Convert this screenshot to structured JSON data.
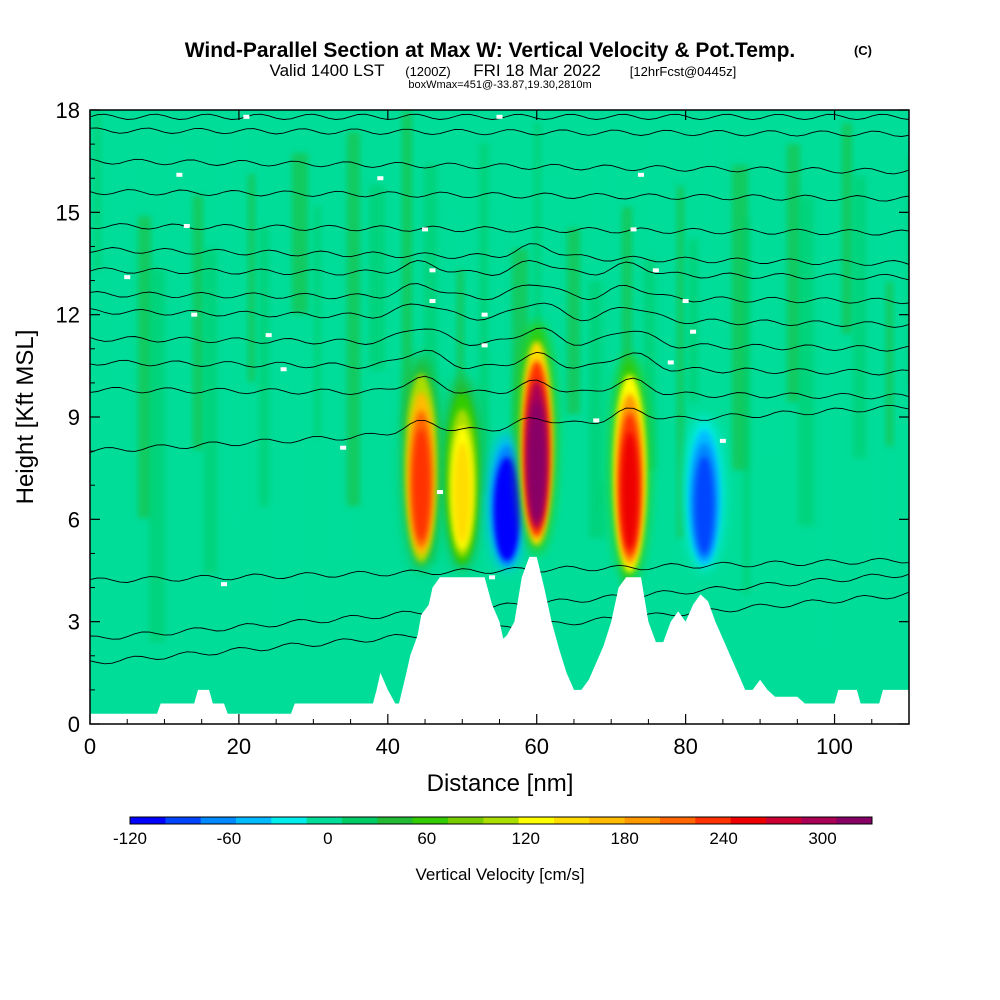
{
  "chart_data": {
    "type": "heatmap",
    "title": "Wind-Parallel Section at Max W: Vertical Velocity & Pot.Temp.",
    "title_mark": "(C)",
    "subtitle_a": "Valid 1400 LST",
    "subtitle_b": "(1200Z)",
    "subtitle_c": "FRI 18 Mar 2022",
    "subtitle_d": "[12hrFcst@0445z]",
    "subtitle2": "boxWmax=451@-33.87,19.30,2810m",
    "xlabel": "Distance [nm]",
    "ylabel": "Height [Kft MSL]",
    "xlim": [
      0,
      110
    ],
    "ylim": [
      0,
      18
    ],
    "xticks": [
      0,
      20,
      40,
      60,
      80,
      100
    ],
    "yticks": [
      0,
      3,
      6,
      9,
      12,
      15,
      18
    ],
    "colorbar": {
      "label": "Vertical Velocity [cm/s]",
      "range": [
        -120,
        330
      ],
      "ticks": [
        -120,
        -60,
        0,
        60,
        120,
        180,
        240,
        300
      ],
      "colors": [
        "#0000ff",
        "#0044ff",
        "#0088ff",
        "#00bbff",
        "#00eeee",
        "#00dd99",
        "#00cc66",
        "#22bb33",
        "#33cc00",
        "#77cc00",
        "#aadd00",
        "#ffff00",
        "#ffdd00",
        "#ffbb00",
        "#ff9900",
        "#ff6600",
        "#ff3300",
        "#ee0000",
        "#cc0033",
        "#aa0055",
        "#880066"
      ]
    },
    "velocity_cores": [
      {
        "x": 44.5,
        "y_bottom": 4.5,
        "y_top": 10.8,
        "w": 240
      },
      {
        "x": 50.0,
        "y_bottom": 4.5,
        "y_top": 10.2,
        "w": 150
      },
      {
        "x": 56.0,
        "y_bottom": 4.5,
        "y_top": 8.5,
        "w": -120
      },
      {
        "x": 60.0,
        "y_bottom": 5.0,
        "y_top": 11.8,
        "w": 330
      },
      {
        "x": 72.5,
        "y_bottom": 4.2,
        "y_top": 10.8,
        "w": 260
      },
      {
        "x": 82.5,
        "y_bottom": 4.5,
        "y_top": 9.0,
        "w": -80
      }
    ],
    "terrain_height_kft": [
      [
        0,
        0.3
      ],
      [
        9,
        0.3
      ],
      [
        9.5,
        0.6
      ],
      [
        14,
        0.6
      ],
      [
        14.5,
        1.0
      ],
      [
        16,
        1.0
      ],
      [
        16.5,
        0.6
      ],
      [
        18,
        0.6
      ],
      [
        18.5,
        0.3
      ],
      [
        27,
        0.3
      ],
      [
        27.5,
        0.6
      ],
      [
        38,
        0.6
      ],
      [
        38.5,
        1.0
      ],
      [
        39,
        1.5
      ],
      [
        40,
        1.0
      ],
      [
        41,
        0.6
      ],
      [
        41.5,
        0.6
      ],
      [
        42.5,
        1.5
      ],
      [
        43,
        2.0
      ],
      [
        44,
        2.6
      ],
      [
        44.5,
        3.2
      ],
      [
        45.5,
        3.5
      ],
      [
        46,
        4.0
      ],
      [
        47,
        4.3
      ],
      [
        53,
        4.3
      ],
      [
        54,
        3.5
      ],
      [
        55,
        3.0
      ],
      [
        55.5,
        2.5
      ],
      [
        56,
        2.6
      ],
      [
        57,
        3.0
      ],
      [
        58,
        4.3
      ],
      [
        59,
        4.9
      ],
      [
        60,
        4.9
      ],
      [
        61,
        4.0
      ],
      [
        62,
        3.0
      ],
      [
        63,
        2.2
      ],
      [
        64,
        1.5
      ],
      [
        65,
        1.0
      ],
      [
        66,
        1.0
      ],
      [
        67,
        1.3
      ],
      [
        68,
        1.8
      ],
      [
        69,
        2.3
      ],
      [
        70,
        3.0
      ],
      [
        71,
        4.0
      ],
      [
        72,
        4.3
      ],
      [
        74,
        4.3
      ],
      [
        75,
        3.0
      ],
      [
        76,
        2.4
      ],
      [
        77,
        2.4
      ],
      [
        78,
        3.0
      ],
      [
        79,
        3.3
      ],
      [
        80,
        3.0
      ],
      [
        81,
        3.5
      ],
      [
        82,
        3.8
      ],
      [
        83,
        3.6
      ],
      [
        84,
        3.0
      ],
      [
        85,
        2.5
      ],
      [
        86,
        2.0
      ],
      [
        87,
        1.5
      ],
      [
        88,
        1.0
      ],
      [
        89,
        1.0
      ],
      [
        90,
        1.3
      ],
      [
        91,
        1.0
      ],
      [
        92,
        0.8
      ],
      [
        95,
        0.8
      ],
      [
        96,
        0.6
      ],
      [
        100,
        0.6
      ],
      [
        100.5,
        1.0
      ],
      [
        103,
        1.0
      ],
      [
        103.5,
        0.6
      ],
      [
        106,
        0.6
      ],
      [
        106.5,
        1.0
      ],
      [
        110,
        1.0
      ]
    ],
    "isentropes_y_at_edges": [
      [
        17.8,
        17.8
      ],
      [
        17.4,
        17.3
      ],
      [
        16.5,
        16.2
      ],
      [
        15.6,
        15.4
      ],
      [
        14.6,
        14.4
      ],
      [
        13.9,
        13.5
      ],
      [
        13.3,
        13.1
      ],
      [
        12.6,
        12.4
      ],
      [
        12.1,
        11.7
      ],
      [
        11.3,
        11.0
      ],
      [
        10.6,
        10.3
      ],
      [
        9.8,
        9.6
      ],
      [
        8.0,
        9.3
      ],
      [
        4.2,
        4.8
      ],
      [
        2.5,
        4.4
      ],
      [
        1.8,
        3.8
      ]
    ],
    "isentrope_labels": [
      {
        "x": 21,
        "y": 17.8
      },
      {
        "x": 55,
        "y": 17.8
      },
      {
        "x": 12,
        "y": 16.1
      },
      {
        "x": 39,
        "y": 16.0
      },
      {
        "x": 74,
        "y": 16.1
      },
      {
        "x": 13,
        "y": 14.6
      },
      {
        "x": 45,
        "y": 14.5
      },
      {
        "x": 73,
        "y": 14.5
      },
      {
        "x": 46,
        "y": 13.3
      },
      {
        "x": 76,
        "y": 13.3
      },
      {
        "x": 5,
        "y": 13.1
      },
      {
        "x": 46,
        "y": 12.4
      },
      {
        "x": 80,
        "y": 12.4
      },
      {
        "x": 14,
        "y": 12.0
      },
      {
        "x": 53,
        "y": 12.0
      },
      {
        "x": 24,
        "y": 11.4
      },
      {
        "x": 53,
        "y": 11.1
      },
      {
        "x": 81,
        "y": 11.5
      },
      {
        "x": 26,
        "y": 10.4
      },
      {
        "x": 78,
        "y": 10.6
      },
      {
        "x": 68,
        "y": 8.9
      },
      {
        "x": 34,
        "y": 8.1
      },
      {
        "x": 85,
        "y": 8.3
      },
      {
        "x": 47,
        "y": 6.8
      },
      {
        "x": 18,
        "y": 4.1
      },
      {
        "x": 54,
        "y": 4.3
      }
    ]
  }
}
